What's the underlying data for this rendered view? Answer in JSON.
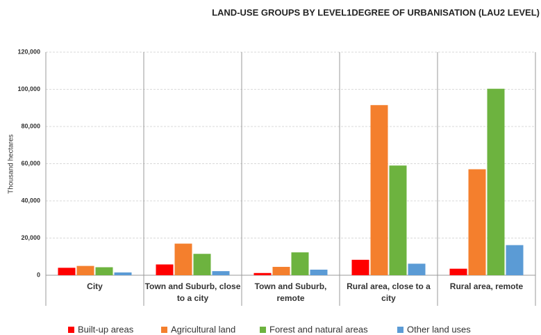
{
  "chart_data": {
    "type": "bar",
    "title": "LAND-USE GROUPS  BY  LEVEL1DEGREE OF URBANISATION (LAU2 LEVEL)",
    "y_label": "Thousand hectares",
    "categories": [
      "City",
      "Town and Suburb, close to a city",
      "Town and Suburb, remote",
      "Rural area, close to a city",
      "Rural area, remote"
    ],
    "series": [
      {
        "name": "Built-up areas",
        "color": "#ff0000",
        "values": [
          4000,
          5800,
          1200,
          8300,
          3500
        ]
      },
      {
        "name": "Agricultural land",
        "color": "#f47f2d",
        "values": [
          5000,
          17000,
          4500,
          91500,
          57000
        ]
      },
      {
        "name": "Forest and natural areas",
        "color": "#6db33f",
        "values": [
          4300,
          11500,
          12300,
          59000,
          100300
        ]
      },
      {
        "name": "Other land uses",
        "color": "#5b9bd5",
        "values": [
          1500,
          2200,
          3000,
          6200,
          16200
        ]
      }
    ],
    "ylim": [
      0,
      120000
    ],
    "yticks": [
      0,
      {
        "value": 20000,
        "label": "20,000"
      },
      {
        "value": 40000,
        "label": "40,000"
      },
      {
        "value": 60000,
        "label": "60,000"
      },
      {
        "value": 80000,
        "label": "80,000"
      },
      {
        "value": 100000,
        "label": "100,000"
      },
      {
        "value": 120000,
        "label": "120,000"
      }
    ],
    "grid": true
  }
}
